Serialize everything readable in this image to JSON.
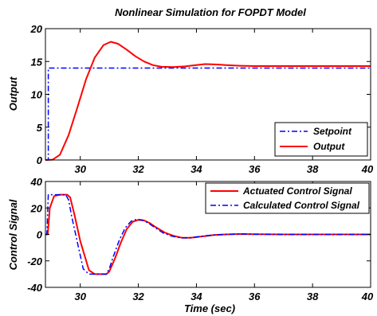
{
  "chart_data": [
    {
      "type": "line",
      "title": "Nonlinear Simulation for FOPDT Model",
      "xlabel": "",
      "ylabel": "Output",
      "xlim": [
        28.8,
        40
      ],
      "ylim": [
        0,
        20
      ],
      "xticks": [
        30,
        32,
        34,
        36,
        38,
        40
      ],
      "xtick_labels": [
        "30",
        "32",
        "34",
        "36",
        "38",
        "40"
      ],
      "yticks": [
        0,
        5,
        10,
        15,
        20
      ],
      "ytick_labels": [
        "0",
        "5",
        "10",
        "15",
        "20"
      ],
      "grid": false,
      "legend_position": "bottom-right",
      "series": [
        {
          "name": "Setpoint",
          "color": "#0000ff",
          "style": "dash-dot",
          "x": [
            28.8,
            28.9,
            28.9,
            40
          ],
          "y": [
            0,
            0,
            14,
            14
          ]
        },
        {
          "name": "Output",
          "color": "#ff0000",
          "style": "solid",
          "x": [
            28.8,
            29.05,
            29.3,
            29.6,
            29.9,
            30.2,
            30.5,
            30.8,
            31.05,
            31.3,
            31.6,
            31.9,
            32.2,
            32.5,
            32.8,
            33.2,
            33.6,
            34.0,
            34.3,
            34.7,
            35.0,
            35.5,
            36.0,
            37.0,
            38.0,
            39.0,
            40.0
          ],
          "y": [
            0,
            0.05,
            0.8,
            3.8,
            8.0,
            12.3,
            15.6,
            17.5,
            18.0,
            17.7,
            16.8,
            15.8,
            15.0,
            14.45,
            14.2,
            14.15,
            14.25,
            14.45,
            14.6,
            14.55,
            14.45,
            14.35,
            14.3,
            14.3,
            14.3,
            14.3,
            14.3
          ]
        }
      ]
    },
    {
      "type": "line",
      "title": "",
      "xlabel": "Time (sec)",
      "ylabel": "Control Signal",
      "xlim": [
        28.8,
        40
      ],
      "ylim": [
        -40,
        40
      ],
      "xticks": [
        30,
        32,
        34,
        36,
        38,
        40
      ],
      "xtick_labels": [
        "30",
        "32",
        "34",
        "36",
        "38",
        "40"
      ],
      "yticks": [
        -40,
        -20,
        0,
        20,
        40
      ],
      "ytick_labels": [
        "-40",
        "-20",
        "0",
        "20",
        "40"
      ],
      "grid": false,
      "legend_position": "top-right",
      "series": [
        {
          "name": "Actuated Control Signal",
          "color": "#ff0000",
          "style": "solid",
          "x": [
            28.8,
            28.88,
            28.95,
            29.1,
            29.3,
            29.55,
            29.65,
            29.8,
            30.0,
            30.3,
            30.5,
            30.9,
            31.0,
            31.2,
            31.4,
            31.6,
            31.8,
            32.0,
            32.2,
            32.4,
            32.6,
            32.9,
            33.2,
            33.5,
            33.8,
            34.2,
            34.6,
            35.0,
            35.5,
            36.0,
            37.0,
            38.0,
            40.0
          ],
          "y": [
            0,
            0,
            20,
            29,
            30,
            30,
            28,
            15,
            -5,
            -27,
            -30,
            -30,
            -28,
            -18,
            -6,
            4,
            9.5,
            11,
            10.5,
            8.5,
            5.5,
            1.5,
            -1,
            -2.5,
            -2.5,
            -1.5,
            -0.5,
            0,
            0.3,
            0.2,
            0,
            0,
            0
          ]
        },
        {
          "name": "Calculated Control Signal",
          "color": "#0000ff",
          "style": "dash-dot",
          "x": [
            28.8,
            28.85,
            28.9,
            29.0,
            29.3,
            29.5,
            29.6,
            29.7,
            29.9,
            30.1,
            30.3,
            30.9,
            31.0,
            31.15,
            31.35,
            31.55,
            31.75,
            31.95,
            32.15,
            32.35,
            32.55,
            32.85,
            33.15,
            33.45,
            33.75,
            34.15,
            34.55,
            35.0,
            35.5,
            36.0,
            37.0,
            38.0,
            40.0
          ],
          "y": [
            0,
            0,
            30,
            30,
            30,
            30,
            26,
            14,
            -6,
            -26,
            -30,
            -30,
            -26,
            -16,
            -4,
            5,
            10,
            11.5,
            10.8,
            8.5,
            5.5,
            1.2,
            -1.3,
            -2.6,
            -2.6,
            -1.5,
            -0.5,
            0,
            0.3,
            0.2,
            0,
            0,
            0
          ]
        }
      ]
    }
  ]
}
